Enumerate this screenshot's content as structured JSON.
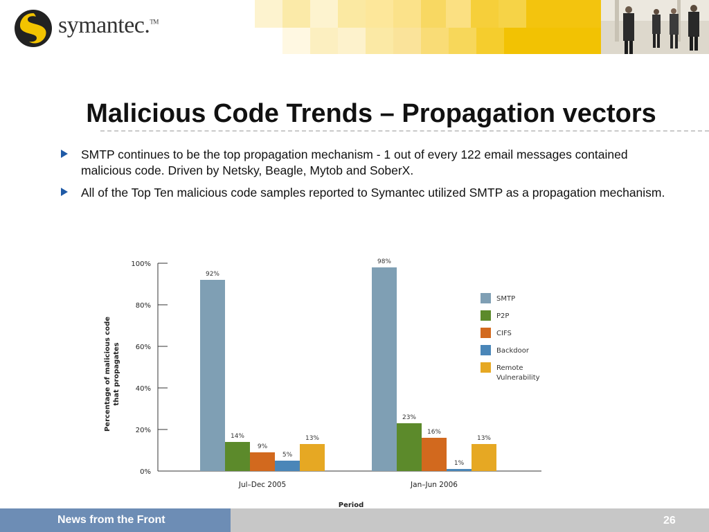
{
  "brand": {
    "name": "symantec.",
    "tm": "TM"
  },
  "slide": {
    "title": "Malicious Code Trends – Propagation vectors",
    "bullets": [
      "SMTP continues to be the top propagation mechanism - 1 out of every 122 email messages contained malicious code.  Driven by Netsky, Beagle, Mytob and SoberX.",
      "All of the Top Ten malicious code samples reported to Symantec utilized SMTP as a propagation mechanism."
    ]
  },
  "footer": {
    "text": "News from the Front",
    "page": "26"
  },
  "colors": {
    "smtp": "#7f9fb4",
    "p2p": "#5c8a2b",
    "cifs": "#d2691e",
    "backdoor": "#4a86b8",
    "remote": "#e6a823"
  },
  "chart_data": {
    "type": "bar",
    "title": "",
    "xlabel": "Period",
    "ylabel": "Percentage of malicious code that propagates",
    "ylim": [
      0,
      100
    ],
    "yticks": [
      "0%",
      "20%",
      "40%",
      "60%",
      "80%",
      "100%"
    ],
    "yticks_values": [
      0,
      20,
      40,
      60,
      80,
      100
    ],
    "categories": [
      "Jul–Dec 2005",
      "Jan–Jun 2006"
    ],
    "series": [
      {
        "name": "SMTP",
        "values": [
          92,
          98
        ],
        "labels": [
          "92%",
          "98%"
        ]
      },
      {
        "name": "P2P",
        "values": [
          14,
          23
        ],
        "labels": [
          "14%",
          "23%"
        ]
      },
      {
        "name": "CIFS",
        "values": [
          9,
          16
        ],
        "labels": [
          "9%",
          "16%"
        ]
      },
      {
        "name": "Backdoor",
        "values": [
          5,
          1
        ],
        "labels": [
          "5%",
          "1%"
        ]
      },
      {
        "name": "Remote Vulnerability",
        "values": [
          13,
          13
        ],
        "labels": [
          "13%",
          "13%"
        ]
      }
    ],
    "legend": "right"
  }
}
